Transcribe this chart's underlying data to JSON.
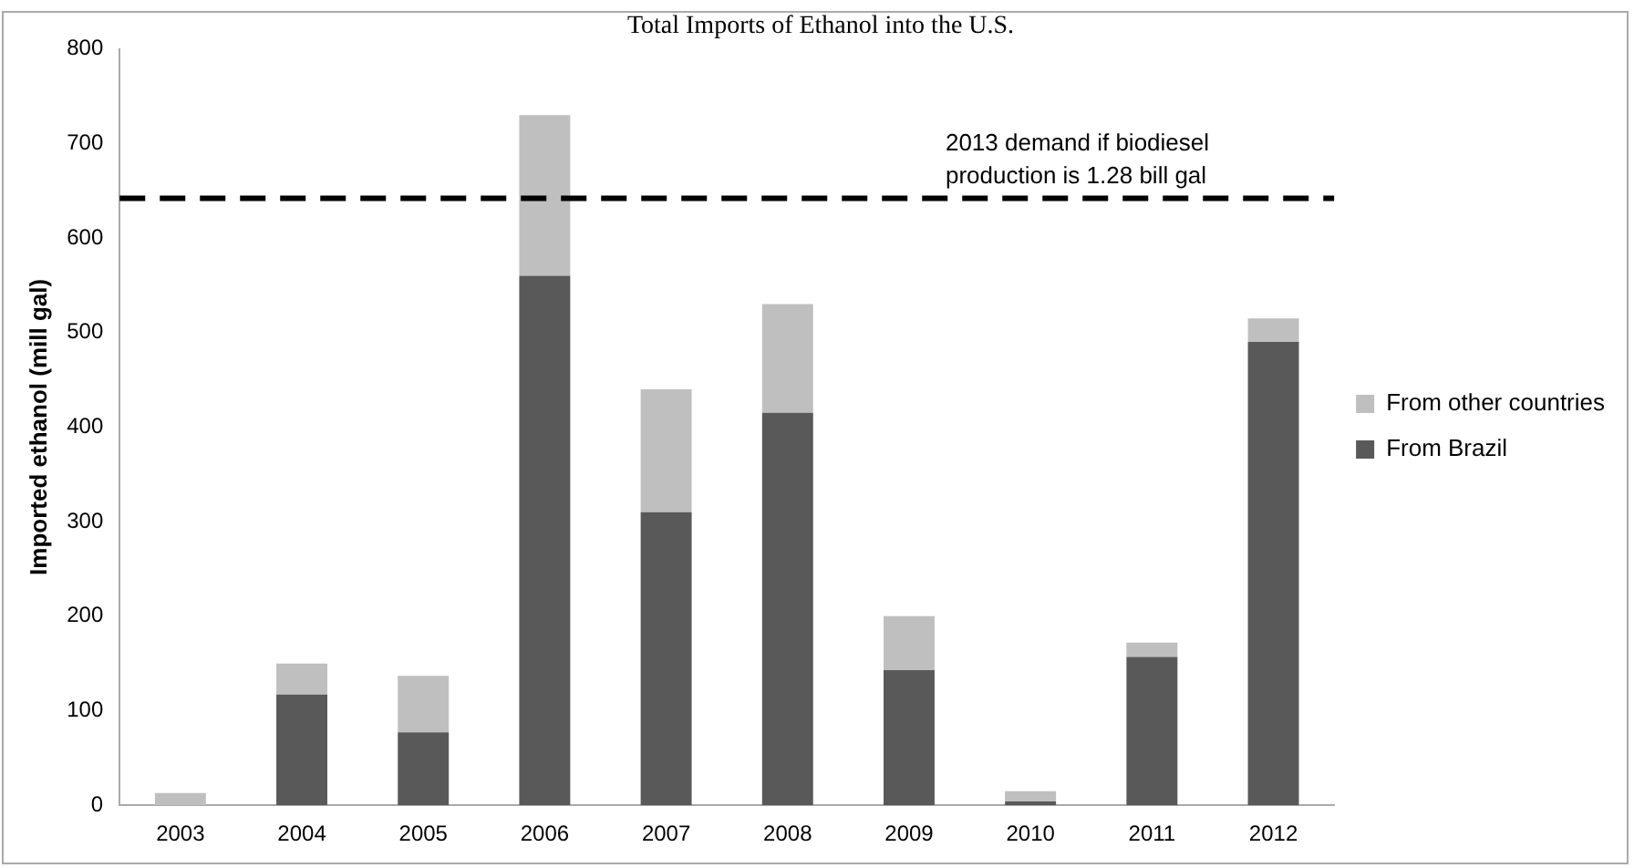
{
  "chart_data": {
    "type": "bar",
    "title": "Total Imports of Ethanol into the U.S.",
    "ylabel": "Imported ethanol (mill gal)",
    "categories": [
      "2003",
      "2004",
      "2005",
      "2006",
      "2007",
      "2008",
      "2009",
      "2010",
      "2011",
      "2012"
    ],
    "stacked": true,
    "series": [
      {
        "name": "From Brazil",
        "color": "#595959",
        "values": [
          0,
          117,
          77,
          560,
          310,
          415,
          143,
          4,
          157,
          490
        ]
      },
      {
        "name": "From other countries",
        "color": "#bfbfbf",
        "values": [
          13,
          33,
          60,
          170,
          130,
          115,
          57,
          11,
          15,
          25
        ]
      }
    ],
    "ylim": [
      0,
      800
    ],
    "yticks": [
      0,
      100,
      200,
      300,
      400,
      500,
      600,
      700,
      800
    ],
    "ref_lines": [
      {
        "axis": "y",
        "value": 642,
        "label": "2013 demand if biodiesel production is 1.28 bill gal",
        "color": "#000000",
        "line_style": "dashed"
      }
    ],
    "grid": false,
    "legend": "right"
  }
}
